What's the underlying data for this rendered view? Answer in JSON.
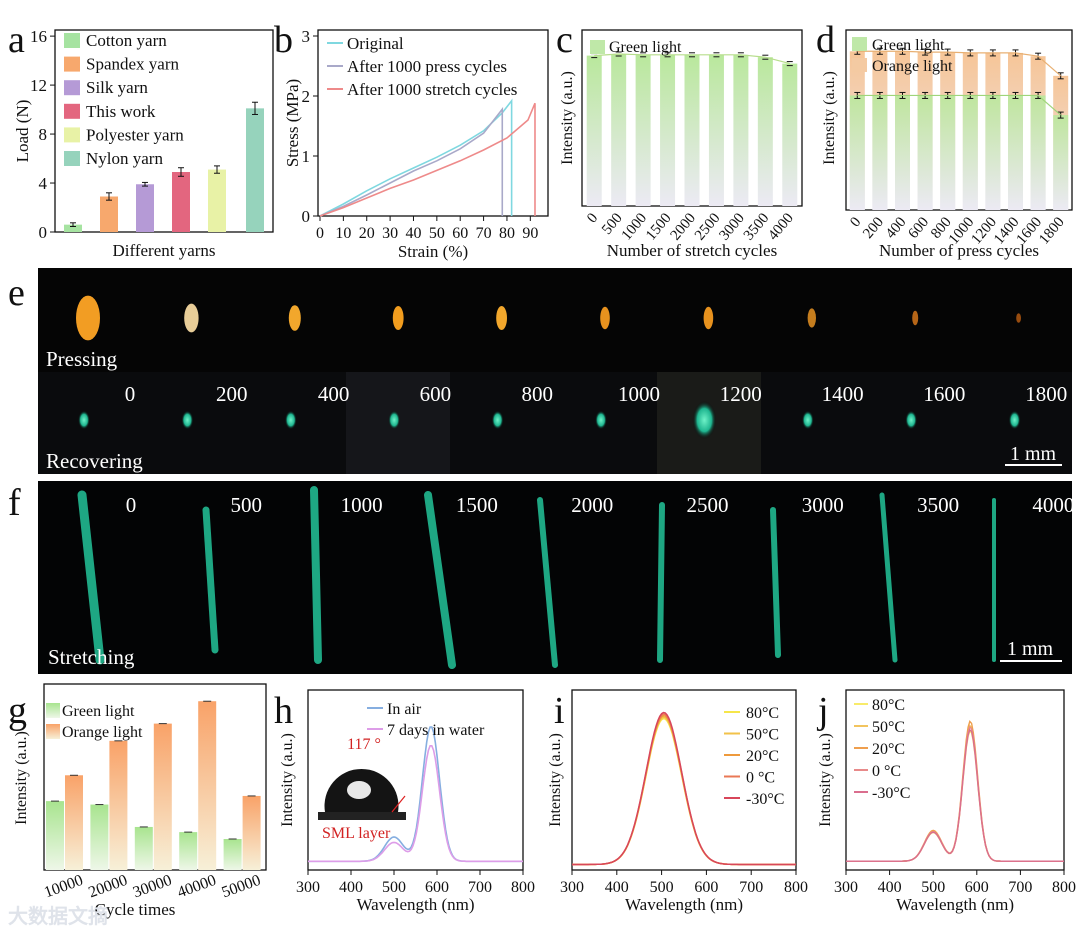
{
  "watermark": "大数据文摘",
  "panels": {
    "a": "a",
    "b": "b",
    "c": "c",
    "d": "d",
    "e": "e",
    "f": "f",
    "g": "g",
    "h": "h",
    "i": "i",
    "j": "j"
  },
  "colors": {
    "cotton": "#a6e3a1",
    "spandex": "#f7a86d",
    "silk": "#b59ad6",
    "thiswork": "#e3667f",
    "polyester": "#e8f2a6",
    "nylon": "#96d3bc",
    "green": "#bfe8a8",
    "orange": "#f4caa2",
    "original": "#7fd8e0",
    "press": "#a9a9c9",
    "stretch": "#ee8a8a"
  },
  "photos": {
    "e_label_top": "Pressing",
    "e_label_bottom": "Recovering",
    "e_counts": [
      "0",
      "200",
      "400",
      "600",
      "800",
      "1000",
      "1200",
      "1400",
      "1600",
      "1800"
    ],
    "f_label": "Stretching",
    "f_counts": [
      "0",
      "500",
      "1000",
      "1500",
      "2000",
      "2500",
      "3000",
      "3500",
      "4000"
    ],
    "scale_bar": "1 mm"
  },
  "inset_h": {
    "angle": "117 °",
    "layer": "SML layer"
  },
  "chart_data": [
    {
      "id": "a",
      "type": "bar",
      "title": "",
      "xlabel": "Different yarns",
      "ylabel": "Load (N)",
      "ylim": [
        0,
        16.5
      ],
      "yticks": [
        "0",
        "4",
        "8",
        "12",
        "16"
      ],
      "categories": [
        "Cotton yarn",
        "Spandex yarn",
        "Silk yarn",
        "This work",
        "Polyester yarn",
        "Nylon yarn"
      ],
      "values": [
        0.6,
        2.9,
        3.9,
        4.9,
        5.1,
        10.1
      ],
      "errors": [
        0.15,
        0.3,
        0.15,
        0.35,
        0.3,
        0.5
      ],
      "legend": [
        "Cotton yarn",
        "Spandex yarn",
        "Silk yarn",
        "This work",
        "Polyester yarn",
        "Nylon yarn"
      ]
    },
    {
      "id": "b",
      "type": "line",
      "xlabel": "Strain (%)",
      "ylabel": "Stress (MPa)",
      "xlim": [
        0,
        95
      ],
      "ylim": [
        0,
        3.1
      ],
      "xticks": [
        "0",
        "10",
        "20",
        "30",
        "40",
        "50",
        "60",
        "70",
        "80",
        "90"
      ],
      "yticks": [
        "0",
        "1",
        "2",
        "3"
      ],
      "series": [
        {
          "name": "Original",
          "x": [
            0,
            10,
            20,
            30,
            40,
            50,
            60,
            70,
            78,
            82,
            82
          ],
          "y": [
            0,
            0.2,
            0.42,
            0.62,
            0.8,
            0.98,
            1.18,
            1.42,
            1.72,
            1.92,
            0
          ]
        },
        {
          "name": "After 1000 press cycles",
          "x": [
            0,
            10,
            20,
            30,
            40,
            50,
            60,
            70,
            78,
            78
          ],
          "y": [
            0,
            0.16,
            0.35,
            0.55,
            0.75,
            0.92,
            1.12,
            1.38,
            1.78,
            0
          ]
        },
        {
          "name": "After 1000 stretch cycles",
          "x": [
            0,
            10,
            20,
            30,
            40,
            50,
            60,
            70,
            80,
            89,
            92,
            92
          ],
          "y": [
            0,
            0.14,
            0.3,
            0.46,
            0.6,
            0.76,
            0.92,
            1.1,
            1.3,
            1.6,
            1.88,
            0
          ]
        }
      ]
    },
    {
      "id": "c",
      "type": "bar",
      "xlabel": "Number of stretch cycles",
      "ylabel": "Intensity (a.u.)",
      "categories": [
        "0",
        "500",
        "1000",
        "1500",
        "2000",
        "2500",
        "3000",
        "3500",
        "4000"
      ],
      "series": [
        {
          "name": "Green light",
          "values": [
            0.94,
            0.95,
            0.945,
            0.945,
            0.945,
            0.945,
            0.945,
            0.93,
            0.89
          ]
        }
      ],
      "ylim": [
        0,
        1.1
      ]
    },
    {
      "id": "d",
      "type": "bar",
      "xlabel": "Number of press cycles",
      "ylabel": "Intensity (a.u.)",
      "categories": [
        "0",
        "200",
        "400",
        "600",
        "800",
        "1000",
        "1200",
        "1400",
        "1600",
        "1800"
      ],
      "series": [
        {
          "name": "Green light",
          "values": [
            0.7,
            0.7,
            0.7,
            0.7,
            0.7,
            0.7,
            0.7,
            0.7,
            0.7,
            0.58
          ]
        },
        {
          "name": "Orange light",
          "values": [
            0.97,
            0.97,
            0.97,
            0.965,
            0.965,
            0.96,
            0.96,
            0.96,
            0.94,
            0.82
          ]
        }
      ],
      "ylim": [
        0,
        1.1
      ]
    },
    {
      "id": "g",
      "type": "bar",
      "xlabel": "Cycle times",
      "ylabel": "Intensity (a.u.)",
      "categories": [
        "10000",
        "20000",
        "30000",
        "40000",
        "50000"
      ],
      "series": [
        {
          "name": "Green light",
          "values": [
            0.4,
            0.38,
            0.25,
            0.22,
            0.18
          ]
        },
        {
          "name": "Orange light",
          "values": [
            0.55,
            0.75,
            0.85,
            0.98,
            0.43
          ]
        }
      ],
      "ylim": [
        0,
        1.08
      ]
    },
    {
      "id": "h",
      "type": "line",
      "xlabel": "Wavelength (nm)",
      "ylabel": "Intensity (a.u.)",
      "xlim": [
        300,
        800
      ],
      "xticks": [
        "300",
        "400",
        "500",
        "600",
        "700",
        "800"
      ],
      "series": [
        {
          "name": "In air",
          "peak2": 586,
          "amp2": 1.0,
          "peak1": 500,
          "amp1": 0.18
        },
        {
          "name": "7 days in water",
          "peak2": 586,
          "amp2": 0.86,
          "peak1": 500,
          "amp1": 0.14
        }
      ]
    },
    {
      "id": "i",
      "type": "line",
      "xlabel": "Wavelength (nm)",
      "ylabel": "Intensity (a.u.)",
      "xlim": [
        300,
        800
      ],
      "xticks": [
        "300",
        "400",
        "500",
        "600",
        "700",
        "800"
      ],
      "series": [
        {
          "name": "80°C",
          "peak": 505,
          "amp": 0.96
        },
        {
          "name": "50°C",
          "peak": 505,
          "amp": 0.97
        },
        {
          "name": "20°C",
          "peak": 505,
          "amp": 0.98
        },
        {
          "name": "0 °C",
          "peak": 505,
          "amp": 0.99
        },
        {
          "name": "-30°C",
          "peak": 505,
          "amp": 1.0
        }
      ]
    },
    {
      "id": "j",
      "type": "line",
      "xlabel": "Wavelength (nm)",
      "ylabel": "Intensity (a.u.)",
      "xlim": [
        300,
        800
      ],
      "xticks": [
        "300",
        "400",
        "500",
        "600",
        "700",
        "800"
      ],
      "series": [
        {
          "name": "80°C",
          "amp": 0.93
        },
        {
          "name": "50°C",
          "amp": 0.97
        },
        {
          "name": "20°C",
          "amp": 1.0
        },
        {
          "name": "0 °C",
          "amp": 0.96
        },
        {
          "name": "-30°C",
          "amp": 0.94
        }
      ]
    }
  ]
}
